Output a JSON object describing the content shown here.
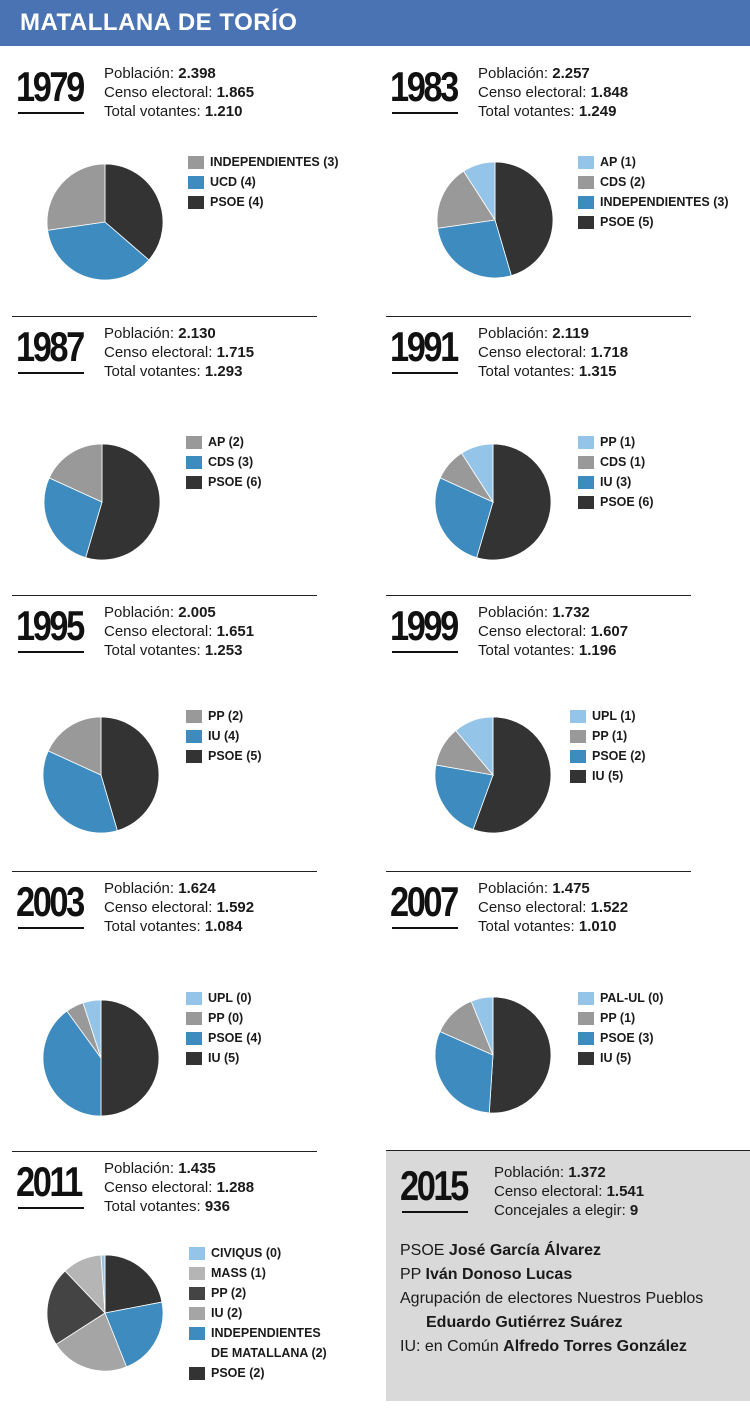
{
  "header": {
    "title": "MATALLANA DE TORÍO"
  },
  "labels": {
    "poblacion": "Población:",
    "censo": "Censo electoral:",
    "votantes": "Total votantes:",
    "concejales": "Concejales a elegir:"
  },
  "colors": {
    "PSOE": "#333333",
    "IU": "#333333",
    "UCD": "#3d8bbf",
    "CDS": "#999999",
    "INDEP": "#999999",
    "AP": "#999999",
    "PP": "#999999",
    "UPL": "#94c4e8",
    "PAL-UL": "#94c4e8",
    "MASS": "#b5b5b5",
    "CIVIQUS": "#94c4e8"
  },
  "chart_data": [
    {
      "type": "pie",
      "year": "1979",
      "poblacion": "2.398",
      "censo": "1.865",
      "votantes": "1.210",
      "legend": [
        "INDEPENDIENTES (3)",
        "UCD (4)",
        "PSOE (4)"
      ],
      "slices": [
        {
          "label": "INDEPENDIENTES",
          "value": 3,
          "color": "#999999"
        },
        {
          "label": "UCD",
          "value": 4,
          "color": "#3d8bbf"
        },
        {
          "label": "PSOE",
          "value": 4,
          "color": "#333333"
        }
      ]
    },
    {
      "type": "pie",
      "year": "1983",
      "poblacion": "2.257",
      "censo": "1.848",
      "votantes": "1.249",
      "legend": [
        "AP (1)",
        "CDS (2)",
        "INDEPENDIENTES (3)",
        "PSOE (5)"
      ],
      "slices": [
        {
          "label": "AP",
          "value": 1,
          "color": "#94c4e8"
        },
        {
          "label": "CDS",
          "value": 2,
          "color": "#999999"
        },
        {
          "label": "INDEPENDIENTES",
          "value": 3,
          "color": "#3d8bbf"
        },
        {
          "label": "PSOE",
          "value": 5,
          "color": "#333333"
        }
      ]
    },
    {
      "type": "pie",
      "year": "1987",
      "poblacion": "2.130",
      "censo": "1.715",
      "votantes": "1.293",
      "legend": [
        "AP (2)",
        "CDS (3)",
        "PSOE (6)"
      ],
      "slices": [
        {
          "label": "AP",
          "value": 2,
          "color": "#999999"
        },
        {
          "label": "CDS",
          "value": 3,
          "color": "#3d8bbf"
        },
        {
          "label": "PSOE",
          "value": 6,
          "color": "#333333"
        }
      ]
    },
    {
      "type": "pie",
      "year": "1991",
      "poblacion": "2.119",
      "censo": "1.718",
      "votantes": "1.315",
      "legend": [
        "PP (1)",
        "CDS (1)",
        "IU (3)",
        "PSOE (6)"
      ],
      "slices": [
        {
          "label": "PP",
          "value": 1,
          "color": "#94c4e8"
        },
        {
          "label": "CDS",
          "value": 1,
          "color": "#999999"
        },
        {
          "label": "IU",
          "value": 3,
          "color": "#3d8bbf"
        },
        {
          "label": "PSOE",
          "value": 6,
          "color": "#333333"
        }
      ]
    },
    {
      "type": "pie",
      "year": "1995",
      "poblacion": "2.005",
      "censo": "1.651",
      "votantes": "1.253",
      "legend": [
        "PP (2)",
        "IU (4)",
        "PSOE (5)"
      ],
      "slices": [
        {
          "label": "PP",
          "value": 2,
          "color": "#999999"
        },
        {
          "label": "IU",
          "value": 4,
          "color": "#3d8bbf"
        },
        {
          "label": "PSOE",
          "value": 5,
          "color": "#333333"
        }
      ]
    },
    {
      "type": "pie",
      "year": "1999",
      "poblacion": "1.732",
      "censo": "1.607",
      "votantes": "1.196",
      "legend": [
        "UPL (1)",
        "PP (1)",
        "PSOE (2)",
        "IU (5)"
      ],
      "slices": [
        {
          "label": "UPL",
          "value": 1,
          "color": "#94c4e8"
        },
        {
          "label": "PP",
          "value": 1,
          "color": "#999999"
        },
        {
          "label": "PSOE",
          "value": 2,
          "color": "#3d8bbf"
        },
        {
          "label": "IU",
          "value": 5,
          "color": "#333333"
        }
      ]
    },
    {
      "type": "pie",
      "year": "2003",
      "poblacion": "1.624",
      "censo": "1.592",
      "votantes": "1.084",
      "legend": [
        "UPL (0)",
        "PP (0)",
        "PSOE (4)",
        "IU (5)"
      ],
      "slices": [
        {
          "label": "UPL",
          "value": 0.5,
          "color": "#94c4e8"
        },
        {
          "label": "PP",
          "value": 0.5,
          "color": "#999999"
        },
        {
          "label": "PSOE",
          "value": 4,
          "color": "#3d8bbf"
        },
        {
          "label": "IU",
          "value": 5,
          "color": "#333333"
        }
      ]
    },
    {
      "type": "pie",
      "year": "2007",
      "poblacion": "1.475",
      "censo": "1.522",
      "votantes": "1.010",
      "legend": [
        "PAL-UL (0)",
        "PP (1)",
        "PSOE (3)",
        "IU (5)"
      ],
      "slices": [
        {
          "label": "PAL-UL",
          "value": 0.6,
          "color": "#94c4e8"
        },
        {
          "label": "PP",
          "value": 1.2,
          "color": "#999999"
        },
        {
          "label": "PSOE",
          "value": 3,
          "color": "#3d8bbf"
        },
        {
          "label": "IU",
          "value": 5,
          "color": "#333333"
        }
      ]
    },
    {
      "type": "pie",
      "year": "2011",
      "poblacion": "1.435",
      "censo": "1.288",
      "votantes": "936",
      "legend": [
        "CIVIQUS (0)",
        "MASS (1)",
        "PP (2)",
        "IU (2)",
        "INDEPENDIENTES",
        "DE MATALLANA (2)",
        "PSOE (2)"
      ],
      "slices": [
        {
          "label": "CIVIQUS",
          "value": 0.1,
          "color": "#94c4e8"
        },
        {
          "label": "MASS",
          "value": 1,
          "color": "#b5b5b5"
        },
        {
          "label": "PP",
          "value": 2,
          "color": "#444444"
        },
        {
          "label": "IU",
          "value": 2,
          "color": "#a5a5a5"
        },
        {
          "label": "INDEPENDIENTES DE MATALLANA",
          "value": 2,
          "color": "#3d8bbf"
        },
        {
          "label": "PSOE",
          "value": 2,
          "color": "#333333"
        }
      ]
    }
  ],
  "box2015": {
    "year": "2015",
    "poblacion": "1.372",
    "censo": "1.541",
    "concejales": "9",
    "candidates": [
      {
        "party": "PSOE",
        "name": "José García Álvarez"
      },
      {
        "party": "PP",
        "name": "Iván Donoso Lucas"
      },
      {
        "party": "Agrupación de electores Nuestros Pueblos",
        "name": "Eduardo Gutiérrez Suárez"
      },
      {
        "party": "IU: en Común",
        "name": "Alfredo Torres González"
      }
    ]
  }
}
